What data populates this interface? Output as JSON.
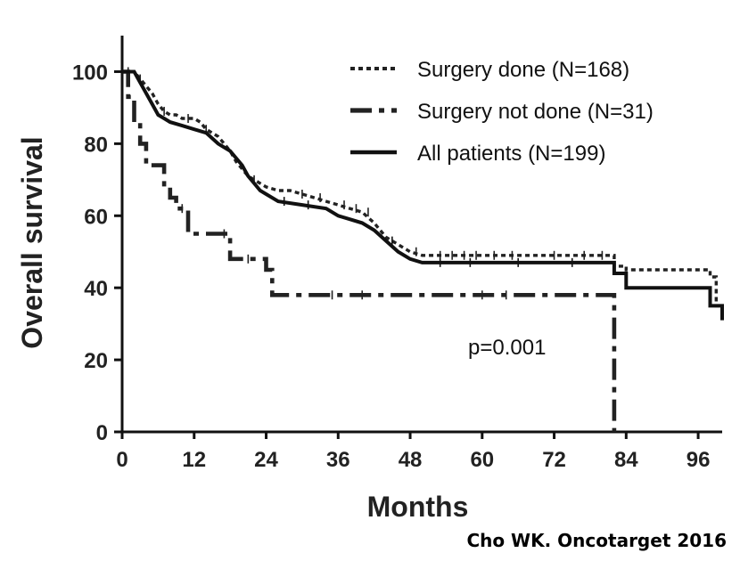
{
  "chart_data": {
    "type": "line",
    "subtype": "kaplan-meier",
    "xlabel": "Months",
    "ylabel": "Overall survival",
    "xlim": [
      0,
      100
    ],
    "ylim": [
      0,
      110
    ],
    "xticks": [
      0,
      12,
      24,
      36,
      48,
      60,
      72,
      84,
      96
    ],
    "yticks": [
      0,
      20,
      40,
      60,
      80,
      100
    ],
    "grid": false,
    "legend_position": "top-right",
    "annotation": "p=0.001",
    "credit": "Cho WK. Oncotarget 2016",
    "series": [
      {
        "name": "Surgery done (N=168)",
        "line_style": "dotted",
        "color": "#222222",
        "points": [
          [
            0,
            100
          ],
          [
            2,
            100
          ],
          [
            3,
            98
          ],
          [
            4,
            96
          ],
          [
            5,
            94
          ],
          [
            6,
            91
          ],
          [
            7,
            89
          ],
          [
            8,
            88
          ],
          [
            9,
            88
          ],
          [
            10,
            87
          ],
          [
            12,
            87
          ],
          [
            13,
            86
          ],
          [
            14,
            84
          ],
          [
            15,
            83
          ],
          [
            16,
            82
          ],
          [
            17,
            80
          ],
          [
            18,
            78
          ],
          [
            19,
            75
          ],
          [
            20,
            73
          ],
          [
            21,
            71
          ],
          [
            22,
            70
          ],
          [
            23,
            69
          ],
          [
            24,
            68
          ],
          [
            26,
            67
          ],
          [
            28,
            67
          ],
          [
            30,
            66
          ],
          [
            32,
            65
          ],
          [
            34,
            64
          ],
          [
            36,
            63
          ],
          [
            38,
            62
          ],
          [
            40,
            61
          ],
          [
            42,
            58
          ],
          [
            43,
            56
          ],
          [
            44,
            54
          ],
          [
            46,
            52
          ],
          [
            47,
            51
          ],
          [
            48,
            50
          ],
          [
            50,
            49
          ],
          [
            60,
            49
          ],
          [
            70,
            49
          ],
          [
            82,
            49
          ],
          [
            82,
            46
          ],
          [
            84,
            46
          ],
          [
            84,
            45
          ],
          [
            96,
            45
          ],
          [
            98,
            45
          ],
          [
            98,
            43
          ],
          [
            99,
            43
          ],
          [
            99,
            35
          ],
          [
            100,
            35
          ]
        ],
        "censor_marks": [
          1,
          3,
          7,
          11,
          14,
          22,
          30,
          33,
          37,
          39,
          41,
          49,
          53,
          55,
          57,
          59,
          62,
          65,
          72,
          77,
          80
        ]
      },
      {
        "name": "Surgery not done (N=31)",
        "line_style": "dash-dot",
        "color": "#222222",
        "points": [
          [
            0,
            100
          ],
          [
            1,
            100
          ],
          [
            1,
            93
          ],
          [
            2,
            93
          ],
          [
            2,
            86
          ],
          [
            3,
            86
          ],
          [
            3,
            80
          ],
          [
            4,
            80
          ],
          [
            4,
            74
          ],
          [
            7,
            74
          ],
          [
            7,
            68
          ],
          [
            8,
            68
          ],
          [
            8,
            65
          ],
          [
            9,
            65
          ],
          [
            9,
            62
          ],
          [
            11,
            62
          ],
          [
            11,
            55
          ],
          [
            18,
            55
          ],
          [
            18,
            48
          ],
          [
            24,
            48
          ],
          [
            24,
            45
          ],
          [
            25,
            45
          ],
          [
            25,
            38
          ],
          [
            82,
            38
          ],
          [
            82,
            0
          ]
        ],
        "censor_marks": [
          10,
          17,
          21,
          35,
          40,
          60,
          64
        ]
      },
      {
        "name": "All patients (N=199)",
        "line_style": "solid",
        "color": "#111111",
        "points": [
          [
            0,
            100
          ],
          [
            2,
            100
          ],
          [
            3,
            97
          ],
          [
            4,
            94
          ],
          [
            5,
            91
          ],
          [
            6,
            88
          ],
          [
            7,
            87
          ],
          [
            8,
            86
          ],
          [
            10,
            85
          ],
          [
            12,
            84
          ],
          [
            14,
            83
          ],
          [
            16,
            80
          ],
          [
            18,
            78
          ],
          [
            20,
            74
          ],
          [
            21,
            71
          ],
          [
            22,
            69
          ],
          [
            23,
            67
          ],
          [
            24,
            66
          ],
          [
            26,
            64
          ],
          [
            30,
            63
          ],
          [
            34,
            62
          ],
          [
            36,
            60
          ],
          [
            38,
            59
          ],
          [
            40,
            58
          ],
          [
            42,
            56
          ],
          [
            44,
            53
          ],
          [
            46,
            50
          ],
          [
            48,
            48
          ],
          [
            50,
            47
          ],
          [
            60,
            47
          ],
          [
            70,
            47
          ],
          [
            82,
            47
          ],
          [
            82,
            44
          ],
          [
            84,
            44
          ],
          [
            84,
            40
          ],
          [
            98,
            40
          ],
          [
            98,
            35
          ],
          [
            100,
            35
          ],
          [
            100,
            31
          ]
        ],
        "censor_marks": [
          27,
          31,
          45,
          53,
          58,
          66,
          75
        ]
      }
    ]
  }
}
